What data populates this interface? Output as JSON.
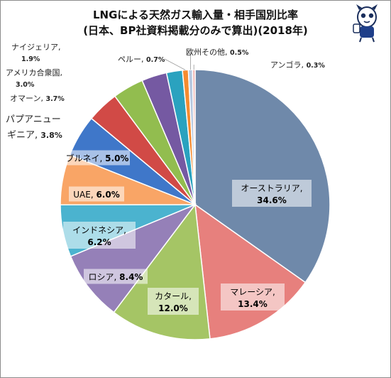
{
  "title": {
    "line1": "LNGによる天然ガス輸入量・相手国別比率",
    "line2": "(日本、BP社資料掲載分のみで算出)(2018年)"
  },
  "chart_data": {
    "type": "pie",
    "title": "LNGによる天然ガス輸入量・相手国別比率 (日本、BP社資料掲載分のみで算出)(2018年)",
    "unit": "%",
    "slices": [
      {
        "name": "オーストラリア",
        "value": 34.6,
        "label": "34.6%",
        "color": "#6f89aa",
        "label_mode": "inside"
      },
      {
        "name": "マレーシア",
        "value": 13.4,
        "label": "13.4%",
        "color": "#e7807d",
        "label_mode": "inside"
      },
      {
        "name": "カタール",
        "value": 12.0,
        "label": "12.0%",
        "color": "#a5c565",
        "label_mode": "inside"
      },
      {
        "name": "ロシア",
        "value": 8.4,
        "label": "8.4%",
        "color": "#9580b8",
        "label_mode": "inside"
      },
      {
        "name": "インドネシア",
        "value": 6.2,
        "label": "6.2%",
        "color": "#4bb3cf",
        "label_mode": "inside"
      },
      {
        "name": "UAE",
        "value": 6.0,
        "label": "6.0%",
        "color": "#f9a566",
        "label_mode": "inside"
      },
      {
        "name": "ブルネイ",
        "value": 5.0,
        "label": "5.0%",
        "color": "#3f77c9",
        "label_mode": "inside"
      },
      {
        "name": "パプアニューギニア",
        "value": 3.8,
        "label": "3.8%",
        "color": "#d14a46",
        "label_mode": "outside"
      },
      {
        "name": "オマーン",
        "value": 3.7,
        "label": "3.7%",
        "color": "#92bd4f",
        "label_mode": "outside"
      },
      {
        "name": "アメリカ合衆国",
        "value": 3.0,
        "label": "3.0%",
        "color": "#7559a2",
        "label_mode": "outside"
      },
      {
        "name": "ナイジェリア",
        "value": 1.9,
        "label": "1.9%",
        "color": "#2aa2bf",
        "label_mode": "outside"
      },
      {
        "name": "ペルー",
        "value": 0.7,
        "label": "0.7%",
        "color": "#f68b2f",
        "label_mode": "outside"
      },
      {
        "name": "欧州その他",
        "value": 0.5,
        "label": "0.5%",
        "color": "#b7c8e0",
        "label_mode": "outside"
      },
      {
        "name": "アンゴラ",
        "value": 0.3,
        "label": "0.3%",
        "color": "#efb4b2",
        "label_mode": "outside"
      }
    ],
    "legend": "none",
    "start_angle": "12 o'clock",
    "direction": "clockwise"
  }
}
